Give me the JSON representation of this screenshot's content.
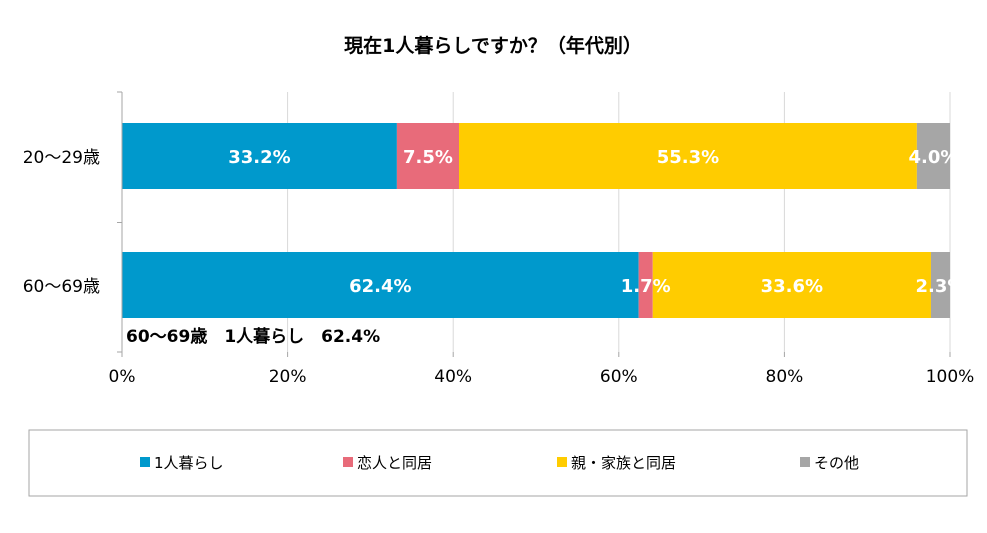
{
  "chart_data": {
    "type": "bar",
    "orientation": "horizontal",
    "stacked": true,
    "title": "現在1人暮らしですか？（年代別）",
    "categories": [
      "20〜29歳",
      "60〜69歳"
    ],
    "series": [
      {
        "name": "1人暮らし",
        "values": [
          33.2,
          62.4
        ],
        "labels": [
          "33.2%",
          "62.4%"
        ],
        "color": "#0099cc"
      },
      {
        "name": "恋人と同居",
        "values": [
          7.5,
          1.7
        ],
        "labels": [
          "7.5%",
          "1.7%"
        ],
        "color": "#e86b7a"
      },
      {
        "name": "親・家族と同居",
        "values": [
          55.3,
          33.6
        ],
        "labels": [
          "55.3%",
          "33.6%"
        ],
        "color": "#ffcc00"
      },
      {
        "name": "その他",
        "values": [
          4.0,
          2.3
        ],
        "labels": [
          "4.0%",
          "2.3%"
        ],
        "color": "#a6a6a6"
      }
    ],
    "xlim": [
      0,
      100
    ],
    "xticks": [
      0,
      20,
      40,
      60,
      80,
      100
    ],
    "xtick_labels": [
      "0%",
      "20%",
      "40%",
      "60%",
      "80%",
      "100%"
    ],
    "grid": true,
    "legend_position": "bottom",
    "annotation": "60〜69歳　1人暮らし　62.4%"
  }
}
